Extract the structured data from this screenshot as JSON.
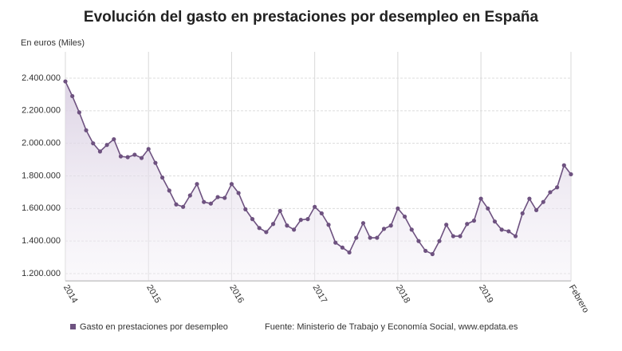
{
  "chart_data": {
    "type": "line",
    "title": "Evolución del gasto en prestaciones por desempleo en España",
    "y_label": "En euros (Miles)",
    "source": "Fuente: Ministerio de Trabajo y Economía Social, www.epdata.es",
    "categories": [
      "2014",
      null,
      null,
      null,
      null,
      null,
      null,
      null,
      null,
      null,
      null,
      null,
      "2015",
      null,
      null,
      null,
      null,
      null,
      null,
      null,
      null,
      null,
      null,
      null,
      "2016",
      null,
      null,
      null,
      null,
      null,
      null,
      null,
      null,
      null,
      null,
      null,
      "2017",
      null,
      null,
      null,
      null,
      null,
      null,
      null,
      null,
      null,
      null,
      null,
      "2018",
      null,
      null,
      null,
      null,
      null,
      null,
      null,
      null,
      null,
      null,
      null,
      "2019",
      null,
      null,
      null,
      null,
      null,
      null,
      null,
      null,
      null,
      null,
      null,
      null,
      "Febrero"
    ],
    "series": [
      {
        "name": "Gasto en prestaciones por desempleo",
        "color": "#6e5280",
        "values": [
          2380000,
          2290000,
          2190000,
          2080000,
          2000000,
          1950000,
          1990000,
          2025000,
          1920000,
          1915000,
          1930000,
          1910000,
          1965000,
          1880000,
          1790000,
          1710000,
          1625000,
          1610000,
          1680000,
          1750000,
          1640000,
          1630000,
          1670000,
          1665000,
          1750000,
          1695000,
          1595000,
          1535000,
          1480000,
          1455000,
          1505000,
          1585000,
          1495000,
          1470000,
          1530000,
          1535000,
          1610000,
          1570000,
          1500000,
          1390000,
          1360000,
          1330000,
          1420000,
          1510000,
          1420000,
          1420000,
          1475000,
          1495000,
          1600000,
          1550000,
          1470000,
          1400000,
          1340000,
          1320000,
          1400000,
          1500000,
          1430000,
          1430000,
          1505000,
          1525000,
          1660000,
          1600000,
          1520000,
          1470000,
          1460000,
          1430000,
          1570000,
          1660000,
          1590000,
          1640000,
          1700000,
          1730000,
          1865000,
          1810000
        ]
      }
    ],
    "ylim": [
      1200000,
      2400000
    ],
    "yticks": [
      {
        "value": 1200000,
        "label": "1.200.000"
      },
      {
        "value": 1400000,
        "label": "1.400.000"
      },
      {
        "value": 1600000,
        "label": "1.600.000"
      },
      {
        "value": 1800000,
        "label": "1.800.000"
      },
      {
        "value": 2000000,
        "label": "2.000.000"
      },
      {
        "value": 2200000,
        "label": "2.200.000"
      },
      {
        "value": 2400000,
        "label": "2.400.000"
      }
    ],
    "grid": true
  }
}
